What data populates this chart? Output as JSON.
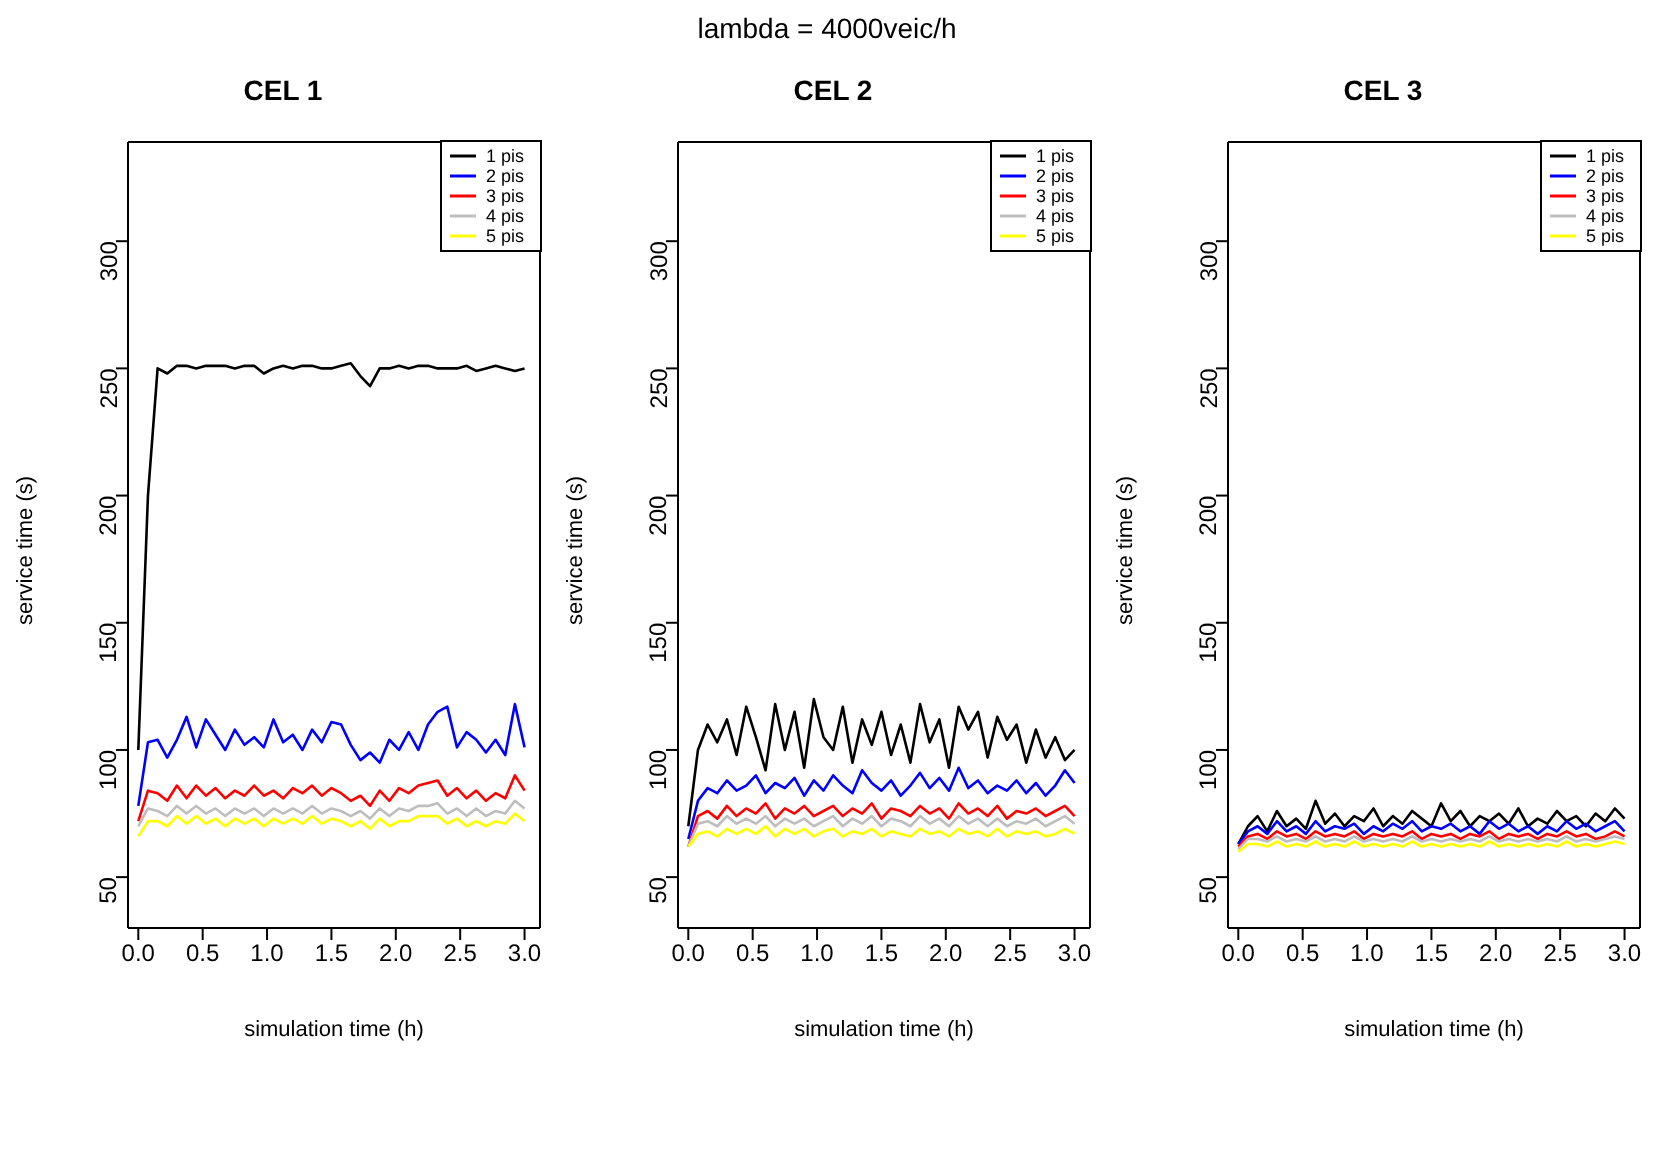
{
  "chart_data": [
    {
      "type": "line",
      "title": "CEL 1",
      "annotations": [
        "lambda = 4000veic/h"
      ],
      "xlabel": "simulation time (h)",
      "ylabel": "service time (s)",
      "xlim": [
        -0.08,
        3.12
      ],
      "ylim": [
        30,
        339
      ],
      "xticks": [
        {
          "value": 0,
          "label": "0.0"
        },
        {
          "value": 0.5,
          "label": "0.5"
        },
        {
          "value": 1,
          "label": "1.0"
        },
        {
          "value": 1.5,
          "label": "1.5"
        },
        {
          "value": 2,
          "label": "2.0"
        },
        {
          "value": 2.5,
          "label": "2.5"
        },
        {
          "value": 3,
          "label": "3.0"
        }
      ],
      "yticks": [
        50,
        100,
        150,
        200,
        250,
        300
      ],
      "legend": "top right",
      "grid": false,
      "marker": "none",
      "line_style": "solid",
      "x": [
        0,
        0.075,
        0.15,
        0.225,
        0.3,
        0.375,
        0.45,
        0.525,
        0.6,
        0.675,
        0.75,
        0.825,
        0.9,
        0.975,
        1.05,
        1.125,
        1.2,
        1.275,
        1.35,
        1.425,
        1.5,
        1.575,
        1.65,
        1.725,
        1.8,
        1.875,
        1.95,
        2.025,
        2.1,
        2.175,
        2.25,
        2.325,
        2.4,
        2.475,
        2.55,
        2.625,
        2.7,
        2.775,
        2.85,
        2.925,
        3
      ],
      "series": [
        {
          "name": "1 pis",
          "color": "#000000",
          "values": [
            100,
            200,
            250,
            248,
            251,
            251,
            250,
            251,
            251,
            251,
            250,
            251,
            251,
            248,
            250,
            251,
            250,
            251,
            251,
            250,
            250,
            251,
            252,
            247,
            243,
            250,
            250,
            251,
            250,
            251,
            251,
            250,
            250,
            250,
            251,
            249,
            250,
            251,
            250,
            249,
            250
          ]
        },
        {
          "name": "2 pis",
          "color": "#0000ff",
          "values": [
            78,
            103,
            104,
            97,
            104,
            113,
            101,
            112,
            106,
            100,
            108,
            102,
            105,
            101,
            112,
            103,
            106,
            100,
            108,
            103,
            111,
            110,
            102,
            96,
            99,
            95,
            104,
            100,
            107,
            100,
            110,
            115,
            117,
            101,
            107,
            104,
            99,
            104,
            98,
            118,
            101
          ]
        },
        {
          "name": "3 pis",
          "color": "#ff0000",
          "values": [
            72,
            84,
            83,
            80,
            86,
            81,
            86,
            82,
            85,
            81,
            84,
            82,
            86,
            82,
            84,
            81,
            85,
            83,
            86,
            82,
            85,
            83,
            80,
            82,
            78,
            84,
            80,
            85,
            83,
            86,
            87,
            88,
            82,
            85,
            81,
            84,
            80,
            83,
            81,
            90,
            84
          ]
        },
        {
          "name": "4 pis",
          "color": "#bebebe",
          "values": [
            70,
            77,
            76,
            74,
            78,
            75,
            78,
            75,
            77,
            74,
            77,
            75,
            77,
            74,
            77,
            75,
            77,
            75,
            78,
            75,
            77,
            76,
            74,
            76,
            73,
            77,
            74,
            77,
            76,
            78,
            78,
            79,
            75,
            77,
            74,
            77,
            74,
            76,
            75,
            80,
            77
          ]
        },
        {
          "name": "5 pis",
          "color": "#ffff00",
          "values": [
            66,
            72,
            72,
            70,
            74,
            71,
            74,
            71,
            73,
            70,
            73,
            71,
            73,
            70,
            73,
            71,
            73,
            71,
            74,
            71,
            73,
            72,
            70,
            72,
            69,
            73,
            70,
            72,
            72,
            74,
            74,
            74,
            71,
            73,
            70,
            72,
            70,
            72,
            71,
            75,
            72
          ]
        }
      ]
    },
    {
      "type": "line",
      "title": "CEL 2",
      "xlabel": "simulation time (h)",
      "ylabel": "service time (s)",
      "xlim": [
        -0.08,
        3.12
      ],
      "ylim": [
        30,
        339
      ],
      "xticks": [
        {
          "value": 0,
          "label": "0.0"
        },
        {
          "value": 0.5,
          "label": "0.5"
        },
        {
          "value": 1,
          "label": "1.0"
        },
        {
          "value": 1.5,
          "label": "1.5"
        },
        {
          "value": 2,
          "label": "2.0"
        },
        {
          "value": 2.5,
          "label": "2.5"
        },
        {
          "value": 3,
          "label": "3.0"
        }
      ],
      "yticks": [
        50,
        100,
        150,
        200,
        250,
        300
      ],
      "legend": "top right",
      "grid": false,
      "marker": "none",
      "line_style": "solid",
      "x": [
        0,
        0.075,
        0.15,
        0.225,
        0.3,
        0.375,
        0.45,
        0.525,
        0.6,
        0.675,
        0.75,
        0.825,
        0.9,
        0.975,
        1.05,
        1.125,
        1.2,
        1.275,
        1.35,
        1.425,
        1.5,
        1.575,
        1.65,
        1.725,
        1.8,
        1.875,
        1.95,
        2.025,
        2.1,
        2.175,
        2.25,
        2.325,
        2.4,
        2.475,
        2.55,
        2.625,
        2.7,
        2.775,
        2.85,
        2.925,
        3
      ],
      "series": [
        {
          "name": "1 pis",
          "color": "#000000",
          "values": [
            70,
            100,
            110,
            103,
            112,
            98,
            117,
            105,
            92,
            118,
            100,
            115,
            93,
            120,
            105,
            100,
            117,
            95,
            112,
            102,
            115,
            98,
            110,
            95,
            118,
            103,
            112,
            93,
            117,
            108,
            115,
            97,
            113,
            104,
            110,
            95,
            108,
            97,
            105,
            96,
            100
          ]
        },
        {
          "name": "2 pis",
          "color": "#0000ff",
          "values": [
            65,
            80,
            85,
            83,
            88,
            84,
            86,
            90,
            83,
            87,
            85,
            89,
            82,
            88,
            84,
            90,
            86,
            83,
            92,
            87,
            84,
            88,
            82,
            86,
            91,
            85,
            89,
            84,
            93,
            85,
            88,
            83,
            86,
            84,
            88,
            83,
            87,
            82,
            86,
            92,
            87
          ]
        },
        {
          "name": "3 pis",
          "color": "#ff0000",
          "values": [
            62,
            74,
            76,
            73,
            78,
            74,
            77,
            75,
            79,
            73,
            77,
            75,
            78,
            74,
            76,
            78,
            74,
            77,
            75,
            79,
            73,
            77,
            76,
            74,
            78,
            75,
            77,
            73,
            79,
            75,
            77,
            74,
            78,
            73,
            76,
            75,
            77,
            74,
            76,
            78,
            74
          ]
        },
        {
          "name": "4 pis",
          "color": "#bebebe",
          "values": [
            62,
            71,
            72,
            70,
            74,
            71,
            73,
            71,
            74,
            70,
            73,
            71,
            73,
            70,
            72,
            74,
            70,
            73,
            71,
            74,
            70,
            73,
            72,
            70,
            74,
            71,
            73,
            70,
            74,
            71,
            73,
            70,
            73,
            70,
            72,
            71,
            73,
            70,
            72,
            74,
            71
          ]
        },
        {
          "name": "5 pis",
          "color": "#ffff00",
          "values": [
            62,
            67,
            68,
            66,
            69,
            67,
            69,
            67,
            70,
            66,
            69,
            67,
            69,
            66,
            68,
            69,
            66,
            68,
            67,
            69,
            66,
            68,
            67,
            66,
            69,
            67,
            68,
            66,
            69,
            67,
            68,
            66,
            69,
            66,
            68,
            67,
            68,
            66,
            67,
            69,
            67
          ]
        }
      ]
    },
    {
      "type": "line",
      "title": "CEL 3",
      "xlabel": "simulation time (h)",
      "ylabel": "service time (s)",
      "xlim": [
        -0.08,
        3.12
      ],
      "ylim": [
        30,
        339
      ],
      "xticks": [
        {
          "value": 0,
          "label": "0.0"
        },
        {
          "value": 0.5,
          "label": "0.5"
        },
        {
          "value": 1,
          "label": "1.0"
        },
        {
          "value": 1.5,
          "label": "1.5"
        },
        {
          "value": 2,
          "label": "2.0"
        },
        {
          "value": 2.5,
          "label": "2.5"
        },
        {
          "value": 3,
          "label": "3.0"
        }
      ],
      "yticks": [
        50,
        100,
        150,
        200,
        250,
        300
      ],
      "legend": "top right",
      "grid": false,
      "marker": "none",
      "line_style": "solid",
      "x": [
        0,
        0.075,
        0.15,
        0.225,
        0.3,
        0.375,
        0.45,
        0.525,
        0.6,
        0.675,
        0.75,
        0.825,
        0.9,
        0.975,
        1.05,
        1.125,
        1.2,
        1.275,
        1.35,
        1.425,
        1.5,
        1.575,
        1.65,
        1.725,
        1.8,
        1.875,
        1.95,
        2.025,
        2.1,
        2.175,
        2.25,
        2.325,
        2.4,
        2.475,
        2.55,
        2.625,
        2.7,
        2.775,
        2.85,
        2.925,
        3
      ],
      "series": [
        {
          "name": "1 pis",
          "color": "#000000",
          "values": [
            63,
            70,
            74,
            68,
            76,
            70,
            73,
            69,
            80,
            71,
            75,
            70,
            74,
            72,
            77,
            70,
            74,
            71,
            76,
            73,
            70,
            79,
            72,
            76,
            70,
            74,
            72,
            75,
            71,
            77,
            70,
            73,
            71,
            76,
            72,
            74,
            70,
            75,
            72,
            77,
            73
          ]
        },
        {
          "name": "2 pis",
          "color": "#0000ff",
          "values": [
            63,
            68,
            70,
            67,
            72,
            68,
            70,
            67,
            72,
            68,
            70,
            69,
            71,
            67,
            70,
            68,
            71,
            69,
            72,
            68,
            70,
            69,
            71,
            68,
            70,
            67,
            72,
            69,
            71,
            68,
            70,
            67,
            70,
            68,
            72,
            69,
            71,
            68,
            70,
            72,
            68
          ]
        },
        {
          "name": "3 pis",
          "color": "#ff0000",
          "values": [
            62,
            66,
            67,
            65,
            68,
            66,
            67,
            65,
            68,
            66,
            67,
            66,
            68,
            65,
            67,
            66,
            67,
            66,
            68,
            65,
            67,
            66,
            67,
            65,
            67,
            66,
            68,
            65,
            67,
            66,
            67,
            65,
            67,
            66,
            68,
            66,
            67,
            65,
            66,
            68,
            66
          ]
        },
        {
          "name": "4 pis",
          "color": "#bebebe",
          "values": [
            61,
            65,
            65,
            64,
            66,
            64,
            65,
            64,
            66,
            64,
            65,
            64,
            66,
            64,
            65,
            64,
            65,
            64,
            66,
            64,
            65,
            64,
            65,
            64,
            65,
            64,
            66,
            64,
            65,
            64,
            65,
            64,
            65,
            64,
            66,
            64,
            65,
            64,
            65,
            66,
            65
          ]
        },
        {
          "name": "5 pis",
          "color": "#ffff00",
          "values": [
            60,
            63,
            63,
            62,
            64,
            62,
            63,
            62,
            64,
            62,
            63,
            62,
            64,
            62,
            63,
            62,
            63,
            62,
            64,
            62,
            63,
            62,
            63,
            62,
            63,
            62,
            64,
            62,
            63,
            62,
            63,
            62,
            63,
            62,
            64,
            62,
            63,
            62,
            63,
            64,
            63
          ]
        }
      ]
    }
  ]
}
